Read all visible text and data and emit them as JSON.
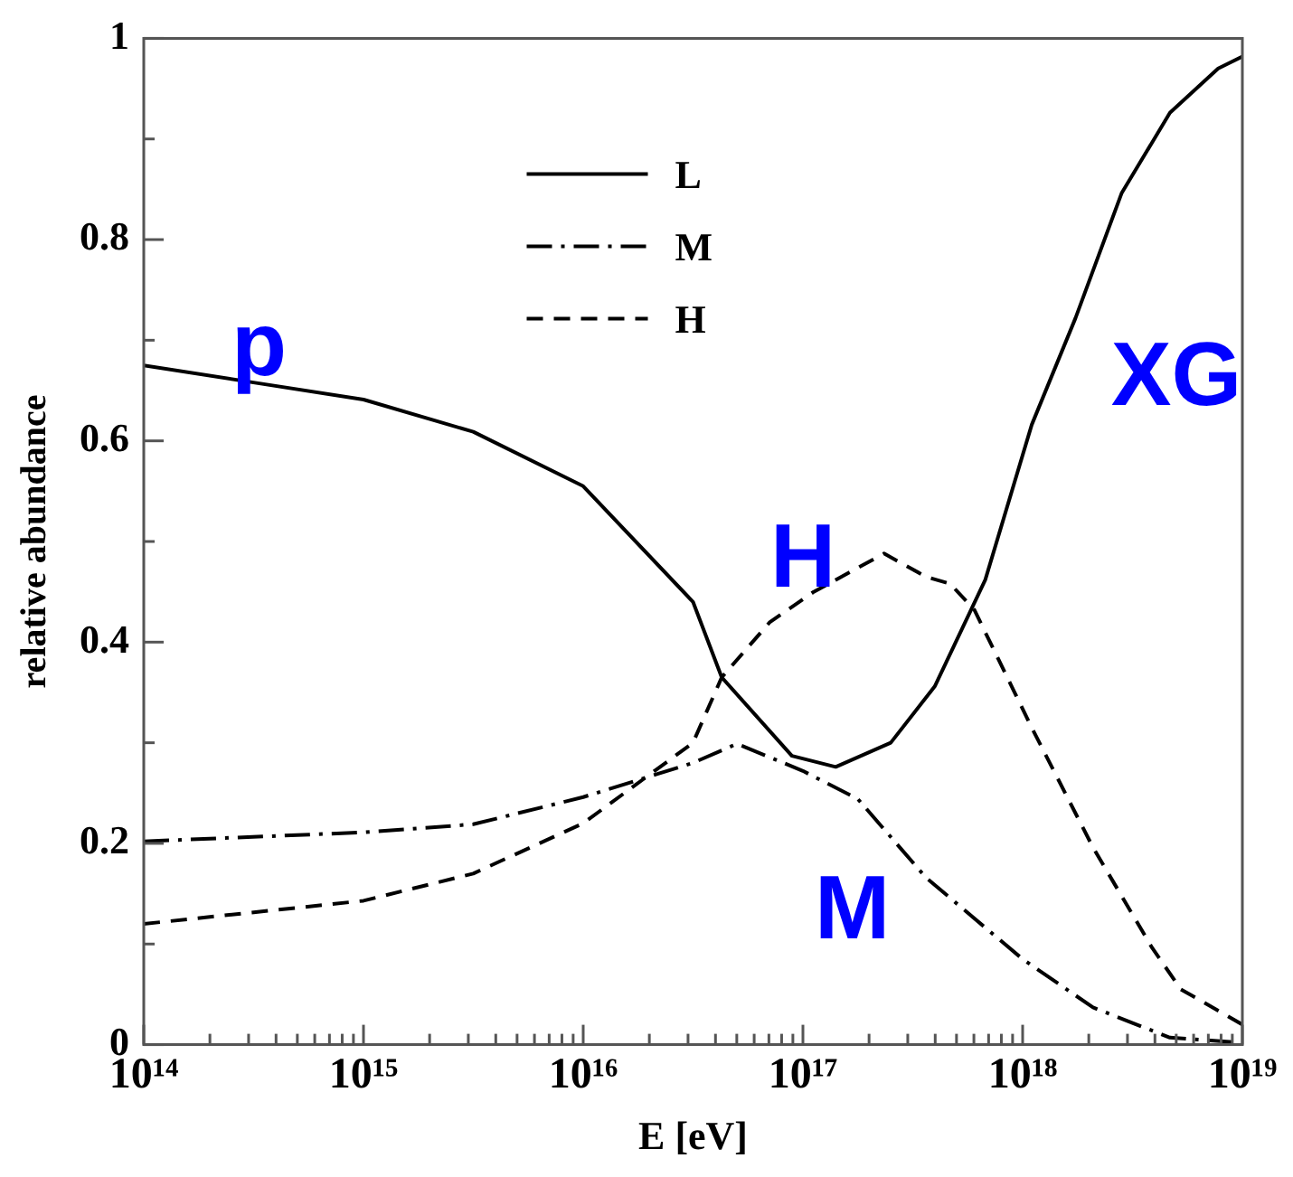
{
  "chart_data": {
    "type": "line",
    "xlabel": "E [eV]",
    "ylabel": "relative abundance",
    "log": "x",
    "grid": false,
    "legend": "top",
    "marker": "none",
    "xlim": [
      100000000000000.0,
      1e+19
    ],
    "ylim": [
      0,
      1
    ],
    "xticks": [
      {
        "value": 100000000000000.0,
        "label": "10¹⁴"
      },
      {
        "value": 200000000000000.0,
        "label": null
      },
      {
        "value": 300000000000000.0,
        "label": null
      },
      {
        "value": 400000000000000.0,
        "label": null
      },
      {
        "value": 500000000000000.0,
        "label": null
      },
      {
        "value": 600000000000000.0,
        "label": null
      },
      {
        "value": 700000000000000.0,
        "label": null
      },
      {
        "value": 800000000000000.0,
        "label": null
      },
      {
        "value": 900000000000000.0,
        "label": null
      },
      {
        "value": 1000000000000000.0,
        "label": "10¹⁵"
      },
      {
        "value": 2000000000000000.0,
        "label": null
      },
      {
        "value": 3000000000000000.0,
        "label": null
      },
      {
        "value": 4000000000000000.0,
        "label": null
      },
      {
        "value": 5000000000000000.0,
        "label": null
      },
      {
        "value": 6000000000000000.0,
        "label": null
      },
      {
        "value": 7000000000000000.0,
        "label": null
      },
      {
        "value": 8000000000000000.0,
        "label": null
      },
      {
        "value": 9000000000000000.0,
        "label": null
      },
      {
        "value": 1e+16,
        "label": "10¹⁶"
      },
      {
        "value": 2e+16,
        "label": null
      },
      {
        "value": 3e+16,
        "label": null
      },
      {
        "value": 4e+16,
        "label": null
      },
      {
        "value": 5e+16,
        "label": null
      },
      {
        "value": 6e+16,
        "label": null
      },
      {
        "value": 7e+16,
        "label": null
      },
      {
        "value": 8e+16,
        "label": null
      },
      {
        "value": 9e+16,
        "label": null
      },
      {
        "value": 1e+17,
        "label": "10¹⁷"
      },
      {
        "value": 2e+17,
        "label": null
      },
      {
        "value": 3e+17,
        "label": null
      },
      {
        "value": 4e+17,
        "label": null
      },
      {
        "value": 5e+17,
        "label": null
      },
      {
        "value": 6e+17,
        "label": null
      },
      {
        "value": 7e+17,
        "label": null
      },
      {
        "value": 8e+17,
        "label": null
      },
      {
        "value": 9e+17,
        "label": null
      },
      {
        "value": 1e+18,
        "label": "10¹⁸"
      },
      {
        "value": 2e+18,
        "label": null
      },
      {
        "value": 3e+18,
        "label": null
      },
      {
        "value": 4e+18,
        "label": null
      },
      {
        "value": 5e+18,
        "label": null
      },
      {
        "value": 6e+18,
        "label": null
      },
      {
        "value": 7e+18,
        "label": null
      },
      {
        "value": 8e+18,
        "label": null
      },
      {
        "value": 9e+18,
        "label": null
      },
      {
        "value": 1e+19,
        "label": "10¹⁹"
      }
    ],
    "yticks": [
      0,
      {
        "value": 0.1,
        "label": null
      },
      0.2,
      {
        "value": 0.3,
        "label": null
      },
      0.4,
      {
        "value": 0.5,
        "label": null
      },
      0.6,
      {
        "value": 0.7,
        "label": null
      },
      0.8,
      {
        "value": 0.9,
        "label": null
      },
      1
    ],
    "series": [
      {
        "name": "L",
        "color": "#000000",
        "line_style": "solid",
        "x": [
          100000000000000.0,
          316000000000000.0,
          1000000000000000.0,
          3160000000000000.0,
          1e+16,
          3.16e+16,
          4.27e+16,
          8.91e+16,
          1.41e+17,
          2.51e+17,
          3.98e+17,
          6.76e+17,
          1.1e+18,
          1.74e+18,
          2.82e+18,
          4.68e+18,
          7.76e+18,
          1e+19
        ],
        "values": [
          0.675,
          0.658,
          0.641,
          0.609,
          0.555,
          0.44,
          0.365,
          0.287,
          0.276,
          0.3,
          0.356,
          0.462,
          0.616,
          0.722,
          0.846,
          0.926,
          0.97,
          0.982
        ]
      },
      {
        "name": "M",
        "color": "#000000",
        "line_style": "dashdot",
        "x": [
          100000000000000.0,
          1000000000000000.0,
          3160000000000000.0,
          1e+16,
          3.16e+16,
          5.01e+16,
          1e+17,
          1.78e+17,
          3.63e+17,
          1e+18,
          2.09e+18,
          4.68e+18,
          1e+19
        ],
        "values": [
          0.202,
          0.211,
          0.219,
          0.246,
          0.28,
          0.299,
          0.272,
          0.244,
          0.166,
          0.085,
          0.037,
          0.007,
          0.002
        ]
      },
      {
        "name": "H",
        "color": "#000000",
        "line_style": "dashed",
        "x": [
          100000000000000.0,
          1000000000000000.0,
          3160000000000000.0,
          1e+16,
          3.16e+16,
          4.27e+16,
          7.08e+16,
          1.12e+17,
          2.34e+17,
          3.63e+17,
          4.68e+17,
          6.03e+17,
          1.1e+18,
          2.09e+18,
          3.89e+18,
          5.25e+18,
          1e+19
        ],
        "values": [
          0.12,
          0.143,
          0.17,
          0.22,
          0.3,
          0.365,
          0.42,
          0.45,
          0.488,
          0.465,
          0.458,
          0.432,
          0.315,
          0.196,
          0.096,
          0.055,
          0.02
        ]
      }
    ],
    "annotations": [
      "p",
      "H",
      "M",
      "XG"
    ]
  }
}
